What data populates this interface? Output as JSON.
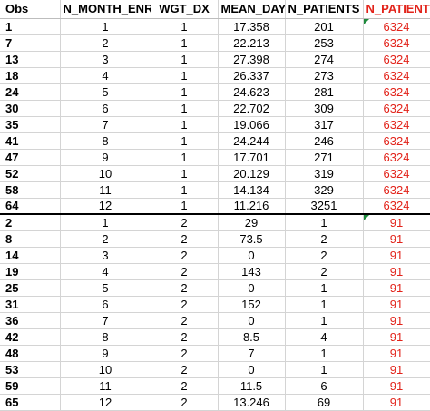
{
  "headers": [
    "Obs",
    "N_MONTH_ENR",
    "WGT_DX",
    "MEAN_DAY",
    "N_PATIENTS",
    "N_PATIENTS"
  ],
  "accent_color": "#e2231a",
  "rows": [
    [
      "1",
      "1",
      "1",
      "17.358",
      "201",
      "6324"
    ],
    [
      "7",
      "2",
      "1",
      "22.213",
      "253",
      "6324"
    ],
    [
      "13",
      "3",
      "1",
      "27.398",
      "274",
      "6324"
    ],
    [
      "18",
      "4",
      "1",
      "26.337",
      "273",
      "6324"
    ],
    [
      "24",
      "5",
      "1",
      "24.623",
      "281",
      "6324"
    ],
    [
      "30",
      "6",
      "1",
      "22.702",
      "309",
      "6324"
    ],
    [
      "35",
      "7",
      "1",
      "19.066",
      "317",
      "6324"
    ],
    [
      "41",
      "8",
      "1",
      "24.244",
      "246",
      "6324"
    ],
    [
      "47",
      "9",
      "1",
      "17.701",
      "271",
      "6324"
    ],
    [
      "52",
      "10",
      "1",
      "20.129",
      "319",
      "6324"
    ],
    [
      "58",
      "11",
      "1",
      "14.134",
      "329",
      "6324"
    ],
    [
      "64",
      "12",
      "1",
      "11.216",
      "3251",
      "6324"
    ],
    [
      "2",
      "1",
      "2",
      "29",
      "1",
      "91"
    ],
    [
      "8",
      "2",
      "2",
      "73.5",
      "2",
      "91"
    ],
    [
      "14",
      "3",
      "2",
      "0",
      "2",
      "91"
    ],
    [
      "19",
      "4",
      "2",
      "143",
      "2",
      "91"
    ],
    [
      "25",
      "5",
      "2",
      "0",
      "1",
      "91"
    ],
    [
      "31",
      "6",
      "2",
      "152",
      "1",
      "91"
    ],
    [
      "36",
      "7",
      "2",
      "0",
      "1",
      "91"
    ],
    [
      "42",
      "8",
      "2",
      "8.5",
      "4",
      "91"
    ],
    [
      "48",
      "9",
      "2",
      "7",
      "1",
      "91"
    ],
    [
      "53",
      "10",
      "2",
      "0",
      "1",
      "91"
    ],
    [
      "59",
      "11",
      "2",
      "11.5",
      "6",
      "91"
    ],
    [
      "65",
      "12",
      "2",
      "13.246",
      "69",
      "91"
    ]
  ]
}
